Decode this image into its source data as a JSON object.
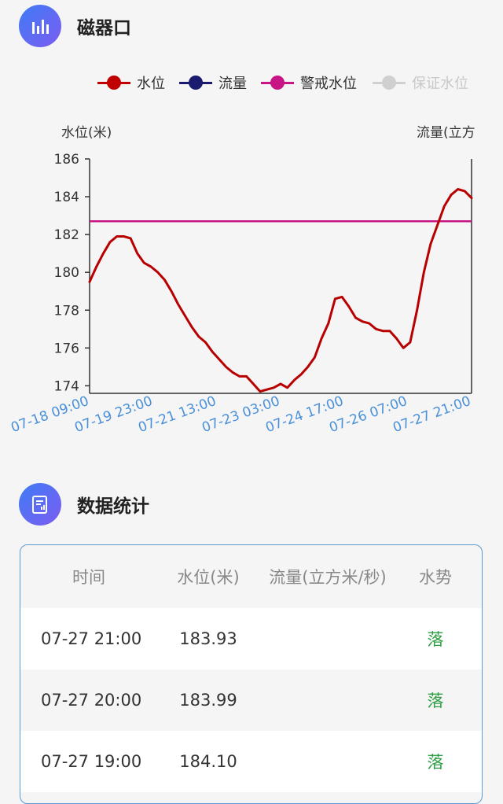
{
  "header": {
    "title": "磁器口"
  },
  "legend": [
    {
      "label": "水位",
      "color": "#c00000",
      "muted": false
    },
    {
      "label": "流量",
      "color": "#1a1a6e",
      "muted": false
    },
    {
      "label": "警戒水位",
      "color": "#c71585",
      "muted": false
    },
    {
      "label": "保证水位",
      "color": "#cccccc",
      "muted": true
    }
  ],
  "chart_data": {
    "type": "line",
    "ylabel": "水位(米)",
    "y2label": "流量(立方",
    "ylim": [
      173.6,
      186
    ],
    "yticks": [
      174,
      176,
      178,
      180,
      182,
      184,
      186
    ],
    "xlabels": [
      "07-18 09:00",
      "07-19 23:00",
      "07-21 13:00",
      "07-23 03:00",
      "07-24 17:00",
      "07-26 07:00",
      "07-27 21:00"
    ],
    "warning_level": 182.7,
    "series": [
      {
        "name": "水位",
        "color": "#b80000",
        "values": [
          179.5,
          180.3,
          181.0,
          181.6,
          181.9,
          181.9,
          181.8,
          181.0,
          180.5,
          180.3,
          180.0,
          179.6,
          179.0,
          178.3,
          177.7,
          177.1,
          176.6,
          176.3,
          175.8,
          175.4,
          175.0,
          174.7,
          174.5,
          174.5,
          174.1,
          173.7,
          173.8,
          173.9,
          174.1,
          173.9,
          174.3,
          174.6,
          175.0,
          175.5,
          176.5,
          177.3,
          178.6,
          178.7,
          178.2,
          177.6,
          177.4,
          177.3,
          177.0,
          176.9,
          176.9,
          176.5,
          176.0,
          176.3,
          178.0,
          180.0,
          181.5,
          182.5,
          183.5,
          184.1,
          184.4,
          184.3,
          183.93
        ]
      }
    ]
  },
  "stats": {
    "title": "数据统计",
    "columns": [
      "时间",
      "水位(米)",
      "流量(立方米/秒)",
      "水势"
    ],
    "rows": [
      {
        "time": "07-27 21:00",
        "level": "183.93",
        "flow": "",
        "trend": "落"
      },
      {
        "time": "07-27 20:00",
        "level": "183.99",
        "flow": "",
        "trend": "落"
      },
      {
        "time": "07-27 19:00",
        "level": "184.10",
        "flow": "",
        "trend": "落"
      }
    ]
  }
}
